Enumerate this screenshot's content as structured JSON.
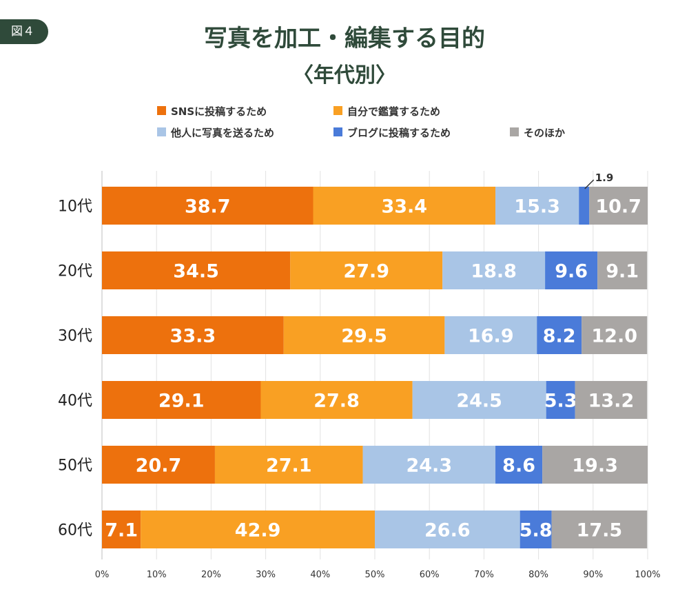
{
  "header": {
    "figure_label": "図４",
    "title": "写真を加工・編集する目的",
    "subtitle": "〈年代別〉"
  },
  "chart_data": {
    "type": "bar",
    "orientation": "horizontal",
    "stacked": true,
    "title": "写真を加工・編集する目的",
    "subtitle": "〈年代別〉",
    "categories": [
      "10代",
      "20代",
      "30代",
      "40代",
      "50代",
      "60代"
    ],
    "xlim": [
      0,
      100
    ],
    "xticks": [
      "0%",
      "10%",
      "20%",
      "30%",
      "40%",
      "50%",
      "60%",
      "70%",
      "80%",
      "90%",
      "100%"
    ],
    "grid": true,
    "legend_position": "top",
    "series": [
      {
        "name": "SNSに投稿するため",
        "color": "#ed710d",
        "values": [
          38.7,
          34.5,
          33.3,
          29.1,
          20.7,
          7.1
        ],
        "labels": [
          "38.7",
          "34.5",
          "33.3",
          "29.1",
          "20.7",
          "7.1"
        ]
      },
      {
        "name": "自分で鑑賞するため",
        "color": "#f9a023",
        "values": [
          33.4,
          27.9,
          29.5,
          27.8,
          27.1,
          42.9
        ],
        "labels": [
          "33.4",
          "27.9",
          "29.5",
          "27.8",
          "27.1",
          "42.9"
        ]
      },
      {
        "name": "他人に写真を送るため",
        "color": "#a9c5e6",
        "values": [
          15.3,
          18.8,
          16.9,
          24.5,
          24.3,
          26.6
        ],
        "labels": [
          "15.3",
          "18.8",
          "16.9",
          "24.5",
          "24.3",
          "26.6"
        ]
      },
      {
        "name": "ブログに投稿するため",
        "color": "#4a7bd9",
        "values": [
          1.9,
          9.6,
          8.2,
          5.3,
          8.6,
          5.8
        ],
        "labels": [
          "1.9",
          "9.6",
          "8.2",
          "5.3",
          "8.6",
          "5.8"
        ]
      },
      {
        "name": "そのほか",
        "color": "#a9a6a4",
        "values": [
          10.7,
          9.1,
          12.0,
          13.2,
          19.3,
          17.5
        ],
        "labels": [
          "10.7",
          "9.1",
          "12.0",
          "13.2",
          "19.3",
          "17.5"
        ]
      }
    ],
    "annotations": [
      {
        "category": "10代",
        "series": "ブログに投稿するため",
        "text": "1.9",
        "style": "callout"
      }
    ]
  }
}
